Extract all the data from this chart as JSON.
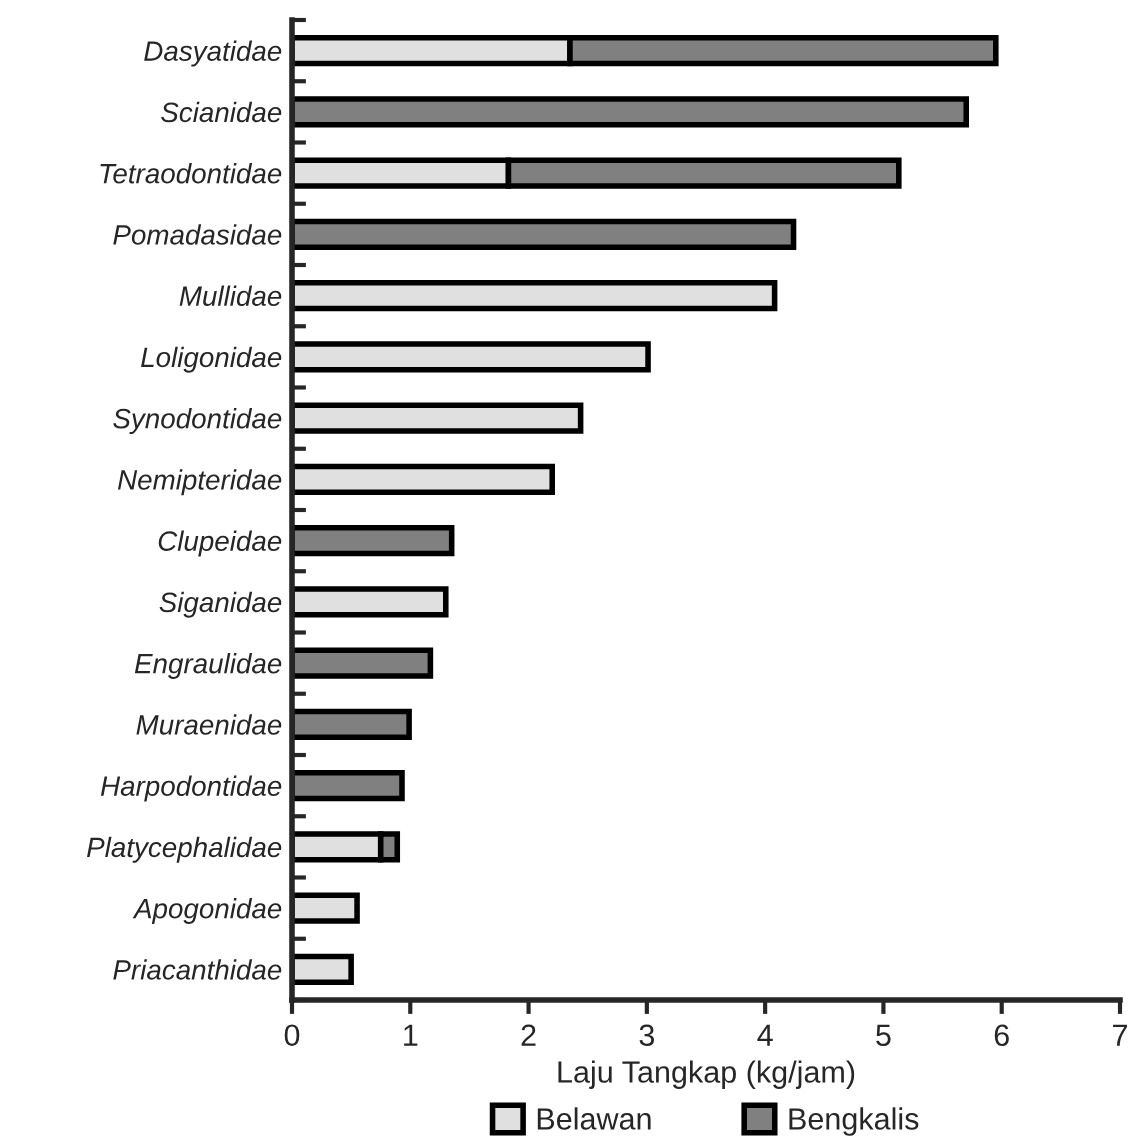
{
  "chart_data": {
    "type": "bar",
    "orientation": "horizontal",
    "stacked": true,
    "xlabel": "Laju Tangkap (kg/jam)",
    "categories": [
      "Dasyatidae",
      "Scianidae",
      "Tetraodontidae",
      "Pomadasidae",
      "Mullidae",
      "Loligonidae",
      "Synodontidae",
      "Nemipteridae",
      "Clupeidae",
      "Siganidae",
      "Engraulidae",
      "Muraenidae",
      "Harpodontidae",
      "Platycephalidae",
      "Apogonidae",
      "Priacanthidae"
    ],
    "series": [
      {
        "name": "Belawan",
        "color": "#e0e0e0",
        "values": [
          2.35,
          null,
          1.83,
          null,
          4.08,
          3.01,
          2.44,
          2.2,
          null,
          1.3,
          null,
          null,
          null,
          0.75,
          0.55,
          0.5
        ]
      },
      {
        "name": "Bengkalis",
        "color": "#808080",
        "values": [
          3.6,
          5.7,
          3.3,
          4.24,
          null,
          null,
          null,
          null,
          1.35,
          null,
          1.17,
          0.99,
          0.93,
          0.14,
          null,
          null
        ]
      }
    ],
    "xlim": [
      0,
      7
    ],
    "xticks": [
      0,
      1,
      2,
      3,
      4,
      5,
      6,
      7
    ],
    "grid": false,
    "legend": "bottom"
  }
}
